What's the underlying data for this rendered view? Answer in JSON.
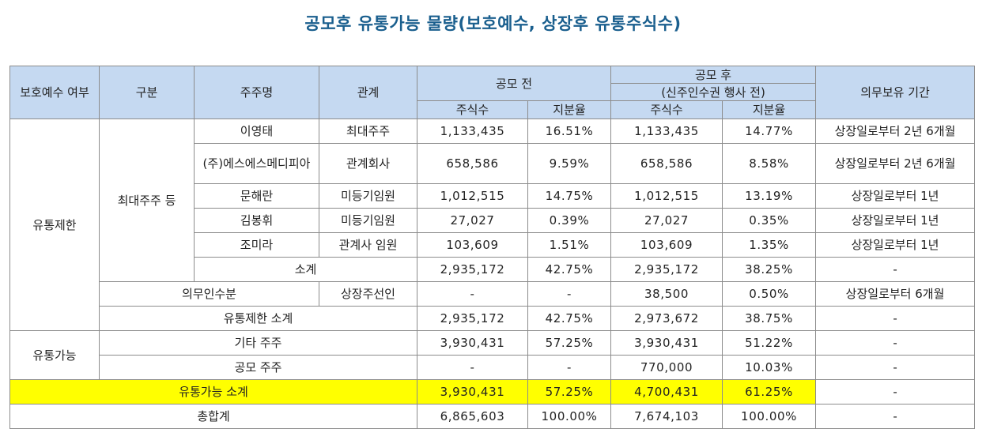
{
  "title": "공모후 유통가능 물량(보호예수, 상장후 유통주식수)",
  "header": {
    "lockup": "보호예수 여부",
    "category": "구분",
    "holder": "주주명",
    "relation": "관계",
    "pre_ipo": "공모 전",
    "post_ipo": "공모 후",
    "post_ipo_note": "(신주인수권 행사 전)",
    "shares": "주식수",
    "ratio": "지분율",
    "period": "의무보유 기간"
  },
  "groups": {
    "restricted": "유통제한",
    "major": "최대주주 등",
    "tradable": "유통가능"
  },
  "rows": [
    {
      "holder": "이영태",
      "relation": "최대주주",
      "pre_shares": "1,133,435",
      "pre_ratio": "16.51%",
      "post_shares": "1,133,435",
      "post_ratio": "14.77%",
      "period": "상장일로부터 2년 6개월"
    },
    {
      "holder": "(주)에스에스메디피아",
      "relation": "관계회사",
      "pre_shares": "658,586",
      "pre_ratio": "9.59%",
      "post_shares": "658,586",
      "post_ratio": "8.58%",
      "period": "상장일로부터 2년 6개월"
    },
    {
      "holder": "문해란",
      "relation": "미등기임원",
      "pre_shares": "1,012,515",
      "pre_ratio": "14.75%",
      "post_shares": "1,012,515",
      "post_ratio": "13.19%",
      "period": "상장일로부터 1년"
    },
    {
      "holder": "김봉휘",
      "relation": "미등기임원",
      "pre_shares": "27,027",
      "pre_ratio": "0.39%",
      "post_shares": "27,027",
      "post_ratio": "0.35%",
      "period": "상장일로부터 1년"
    },
    {
      "holder": "조미라",
      "relation": "관계사 임원",
      "pre_shares": "103,609",
      "pre_ratio": "1.51%",
      "post_shares": "103,609",
      "post_ratio": "1.35%",
      "period": "상장일로부터 1년"
    }
  ],
  "major_subtotal": {
    "label": "소계",
    "pre_shares": "2,935,172",
    "pre_ratio": "42.75%",
    "post_shares": "2,935,172",
    "post_ratio": "38.25%",
    "period": "-"
  },
  "underwriter": {
    "label": "의무인수분",
    "relation": "상장주선인",
    "pre_shares": "-",
    "pre_ratio": "-",
    "post_shares": "38,500",
    "post_ratio": "0.50%",
    "period": "상장일로부터 6개월"
  },
  "restricted_subtotal": {
    "label": "유통제한 소계",
    "pre_shares": "2,935,172",
    "pre_ratio": "42.75%",
    "post_shares": "2,973,672",
    "post_ratio": "38.75%",
    "period": "-"
  },
  "other": {
    "label": "기타 주주",
    "pre_shares": "3,930,431",
    "pre_ratio": "57.25%",
    "post_shares": "3,930,431",
    "post_ratio": "51.22%",
    "period": "-"
  },
  "public": {
    "label": "공모 주주",
    "pre_shares": "-",
    "pre_ratio": "-",
    "post_shares": "770,000",
    "post_ratio": "10.03%",
    "period": "-"
  },
  "tradable_subtotal": {
    "label": "유통가능 소계",
    "pre_shares": "3,930,431",
    "pre_ratio": "57.25%",
    "post_shares": "4,700,431",
    "post_ratio": "61.25%",
    "period": "-"
  },
  "total": {
    "label": "총합계",
    "pre_shares": "6,865,603",
    "pre_ratio": "100.00%",
    "post_shares": "7,674,103",
    "post_ratio": "100.00%",
    "period": "-"
  },
  "colors": {
    "header_bg": "#c5d9f1",
    "highlight": "#ffff00",
    "title": "#1a5f8e"
  }
}
